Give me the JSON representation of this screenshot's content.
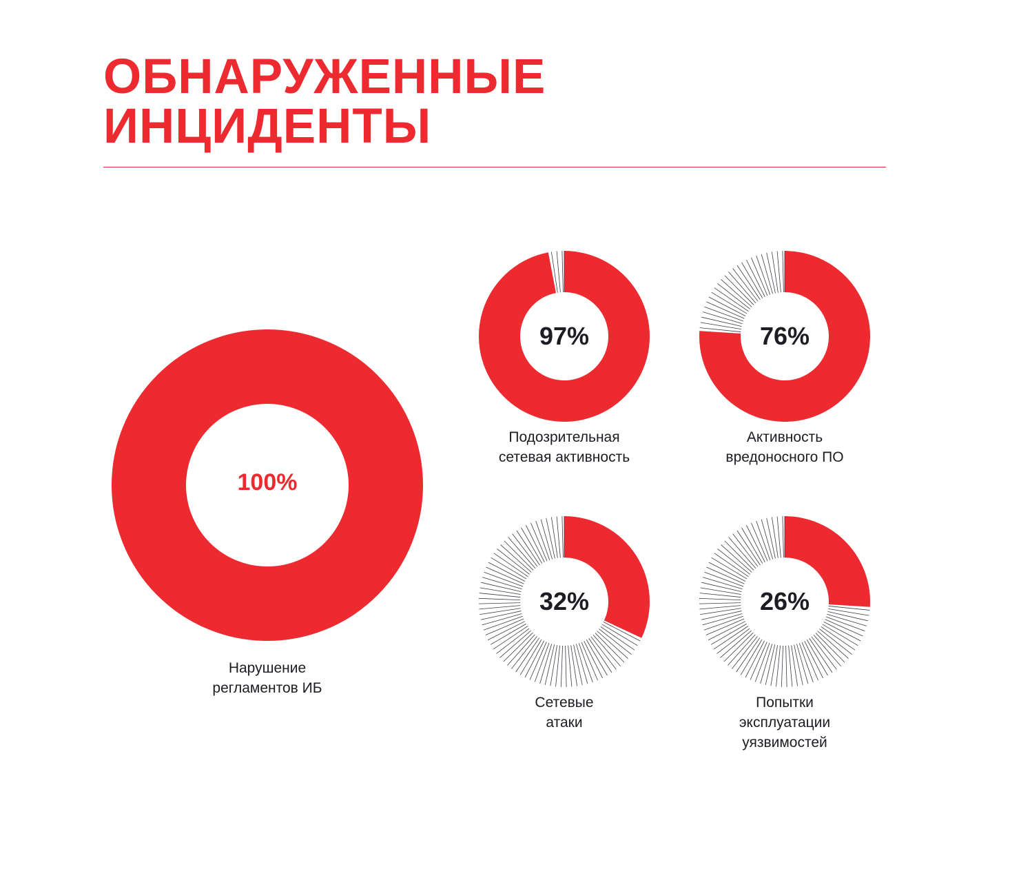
{
  "title": {
    "line1": "ОБНАРУЖЕННЫЕ",
    "line2": "ИНЦИДЕНТЫ"
  },
  "colors": {
    "accent": "#ec2a2f",
    "text": "#1c1c22",
    "remainder_lines": "#3a3a44"
  },
  "chart_data": [
    {
      "type": "pie",
      "style": "donut",
      "value": 100,
      "value_label": "100%",
      "label": "Нарушение\nрегламентов ИБ"
    },
    {
      "type": "pie",
      "style": "donut",
      "value": 97,
      "value_label": "97%",
      "label": "Подозрительная\nсетевая активность"
    },
    {
      "type": "pie",
      "style": "donut",
      "value": 76,
      "value_label": "76%",
      "label": "Активность\nвредоносного ПО"
    },
    {
      "type": "pie",
      "style": "donut",
      "value": 32,
      "value_label": "32%",
      "label": "Сетевые\nатаки"
    },
    {
      "type": "pie",
      "style": "donut",
      "value": 26,
      "value_label": "26%",
      "label": "Попытки\nэксплуатации\nуязвимостей"
    }
  ]
}
